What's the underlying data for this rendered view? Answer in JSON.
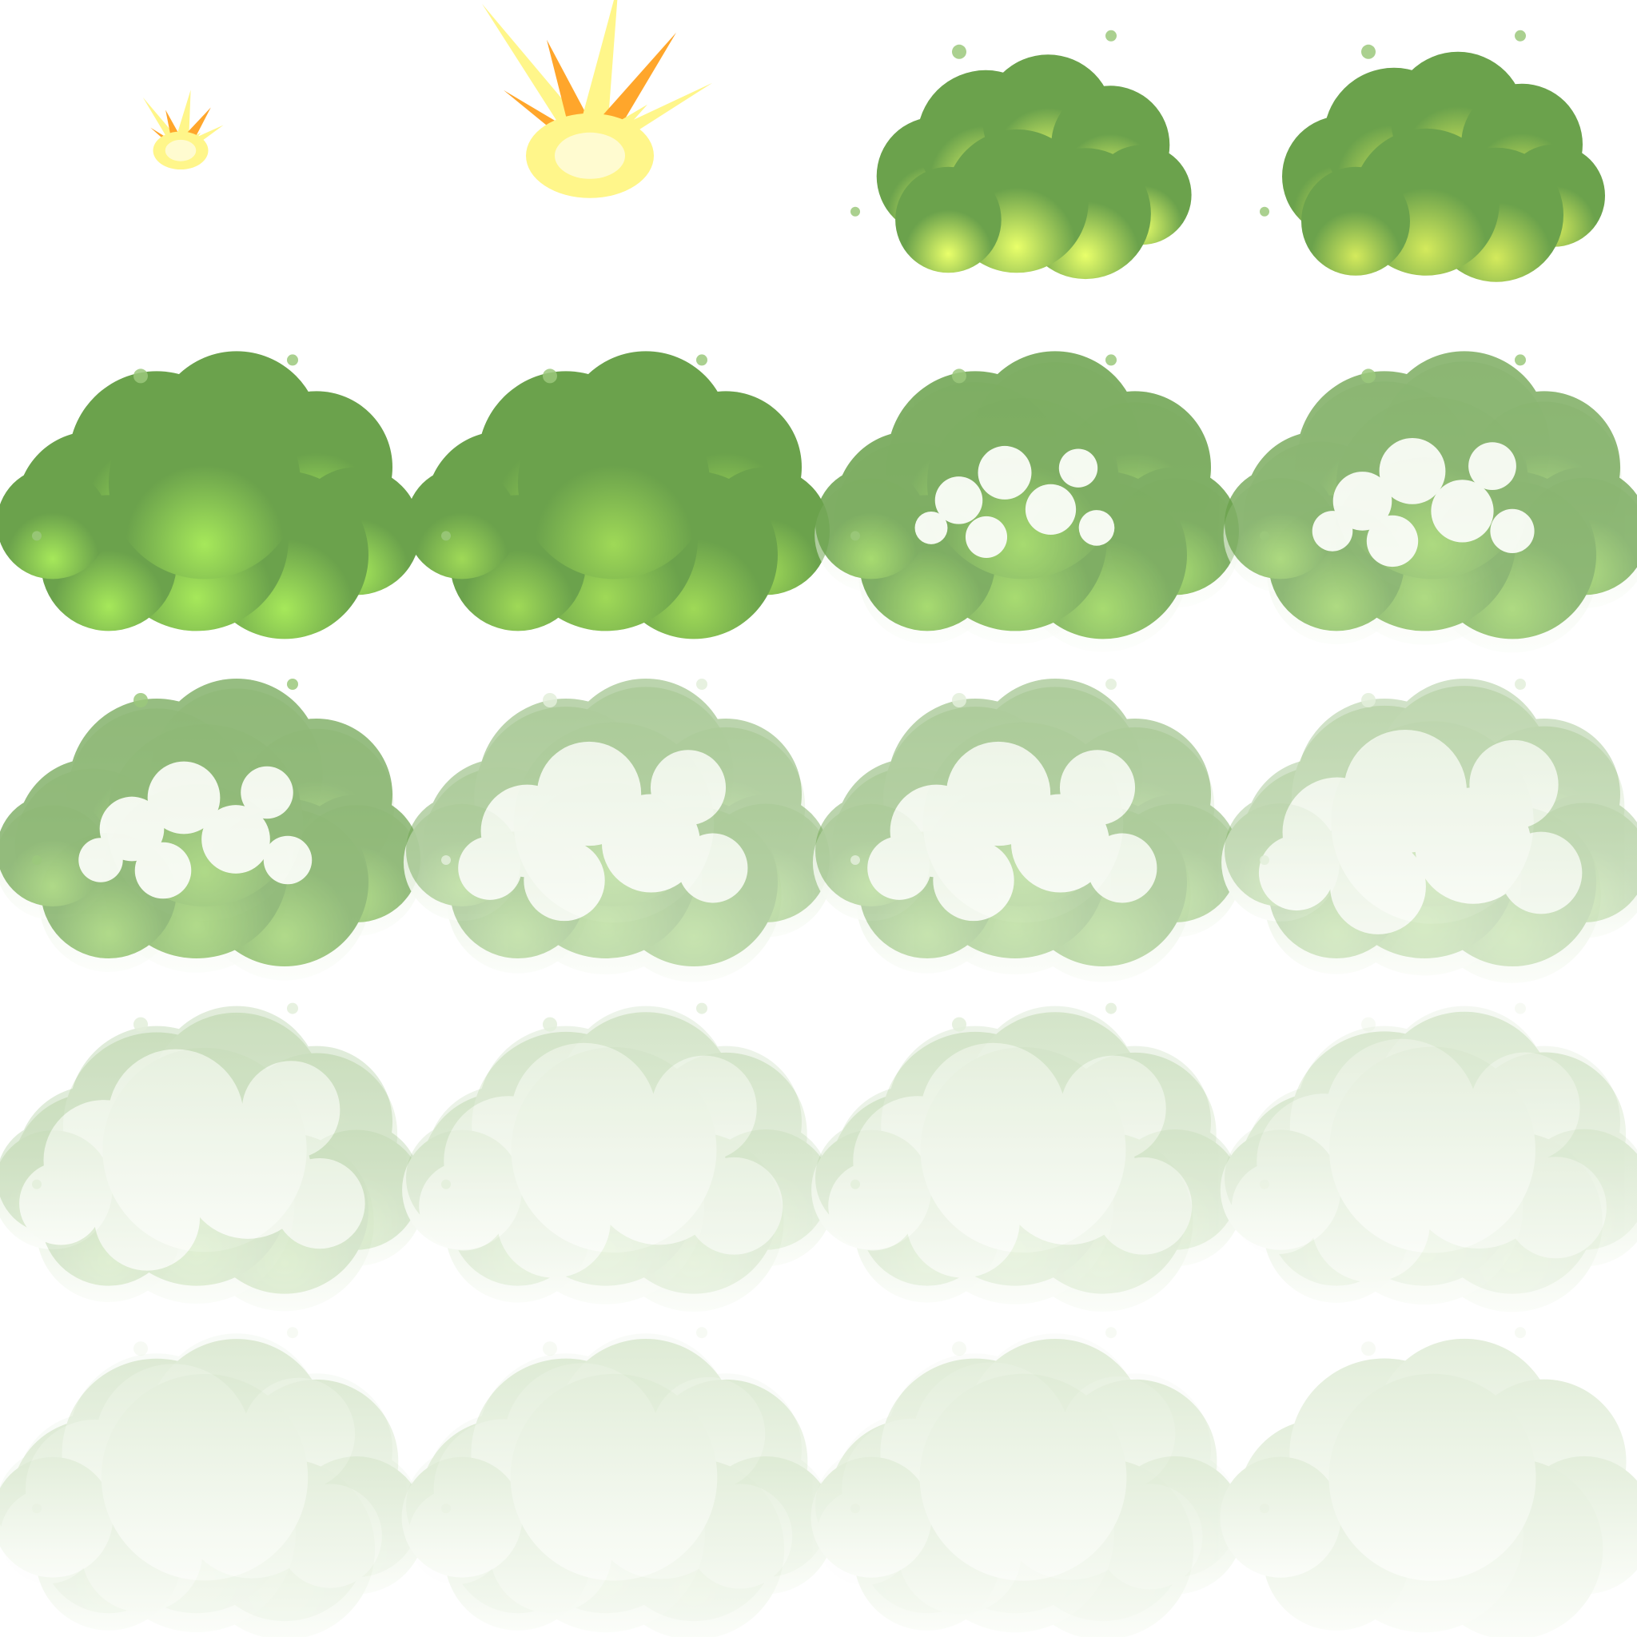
{
  "sheet": {
    "background": "#ffffff",
    "grid": {
      "rows": 5,
      "columns": 4
    },
    "frame_count": 20,
    "palette": {
      "spark_yellow": "#fff68a",
      "spark_orange": "#ffa62b",
      "spark_light": "#fffbd0",
      "cloud_dark": "#6ba24c",
      "cloud_glow": "#e9ff6a",
      "cloud_lime": "#a6e85a",
      "smoke_white": "#f7fbf3",
      "smoke_tint": "#e3eedb"
    }
  },
  "frames": [
    {
      "kind": "spark",
      "size": 0.35,
      "fade": 0
    },
    {
      "kind": "spark",
      "size": 1.0,
      "fade": 0
    },
    {
      "kind": "puff",
      "size": 0.78,
      "fade": 0,
      "glow": "#e9ff6a"
    },
    {
      "kind": "puff",
      "size": 0.8,
      "fade": 0,
      "glow": "#d4ea5c"
    },
    {
      "kind": "cloud",
      "size": 1.0,
      "fade": 0,
      "glow": "#a6e85a"
    },
    {
      "kind": "cloud",
      "size": 1.0,
      "fade": 0,
      "glow": "#9fd957"
    },
    {
      "kind": "cloud",
      "size": 1.0,
      "fade": 0.15,
      "glow": "#9ad65a"
    },
    {
      "kind": "cloud",
      "size": 1.0,
      "fade": 0.25,
      "glow": "#96d05b"
    },
    {
      "kind": "cloud",
      "size": 1.0,
      "fade": 0.3,
      "glow": "#93cd5d"
    },
    {
      "kind": "cloud",
      "size": 1.0,
      "fade": 0.55,
      "glow": "#8fca5e"
    },
    {
      "kind": "cloud",
      "size": 1.0,
      "fade": 0.55,
      "glow": "#8fca5e"
    },
    {
      "kind": "cloud",
      "size": 1.0,
      "fade": 0.7,
      "glow": "#8fca5e"
    },
    {
      "kind": "cloud",
      "size": 1.0,
      "fade": 0.8,
      "glow": "#8fca5e"
    },
    {
      "kind": "cloud",
      "size": 1.0,
      "fade": 0.88,
      "glow": "#8fca5e"
    },
    {
      "kind": "cloud",
      "size": 1.0,
      "fade": 0.88,
      "glow": "#8fca5e"
    },
    {
      "kind": "cloud",
      "size": 1.0,
      "fade": 0.93,
      "glow": "#8fca5e"
    },
    {
      "kind": "cloud",
      "size": 1.0,
      "fade": 0.96,
      "glow": "#8fca5e"
    },
    {
      "kind": "cloud",
      "size": 1.0,
      "fade": 0.97,
      "glow": "#8fca5e"
    },
    {
      "kind": "cloud",
      "size": 1.0,
      "fade": 0.98,
      "glow": "#8fca5e"
    },
    {
      "kind": "cloud",
      "size": 1.0,
      "fade": 0.99,
      "glow": "#8fca5e"
    }
  ]
}
